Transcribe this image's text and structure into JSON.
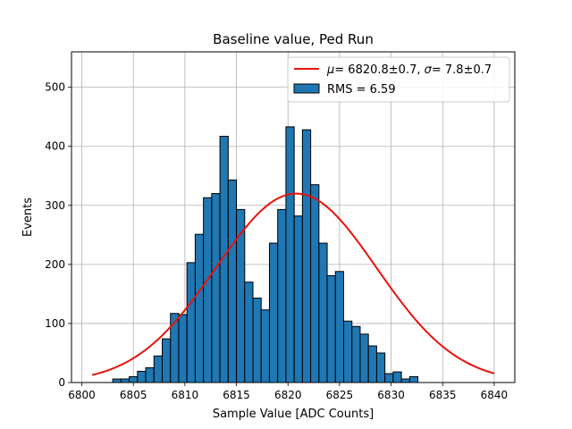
{
  "chart_data": {
    "type": "bar",
    "title": "Baseline value, Ped Run",
    "xlabel": "Sample Value [ADC Counts]",
    "ylabel": "Events",
    "xlim": [
      6799.0,
      6842.0
    ],
    "ylim": [
      0,
      560
    ],
    "xticks": [
      6800,
      6805,
      6810,
      6815,
      6820,
      6825,
      6830,
      6835,
      6840
    ],
    "yticks": [
      0,
      100,
      200,
      300,
      400,
      500
    ],
    "grid": true,
    "legend_position": "top-right",
    "bar_color": "#1f77b4",
    "fit_color": "#e8120c",
    "histogram": {
      "name": "RMS = 6.59",
      "bin_start": 6803.0,
      "bin_width": 0.8,
      "values": [
        6,
        6,
        10,
        19,
        25,
        45,
        74,
        117,
        115,
        203,
        251,
        313,
        320,
        417,
        343,
        293,
        170,
        143,
        123,
        236,
        293,
        433,
        282,
        428,
        335,
        236,
        181,
        188,
        104,
        95,
        82,
        62,
        50,
        15,
        18,
        6,
        10
      ]
    },
    "fit": {
      "name_text": "= 6820.8±0.7, ",
      "name_text2": "= 7.8±0.7",
      "mu": 6820.8,
      "sigma": 7.8,
      "amplitude": 320,
      "x_range": [
        6801,
        6840
      ]
    }
  }
}
